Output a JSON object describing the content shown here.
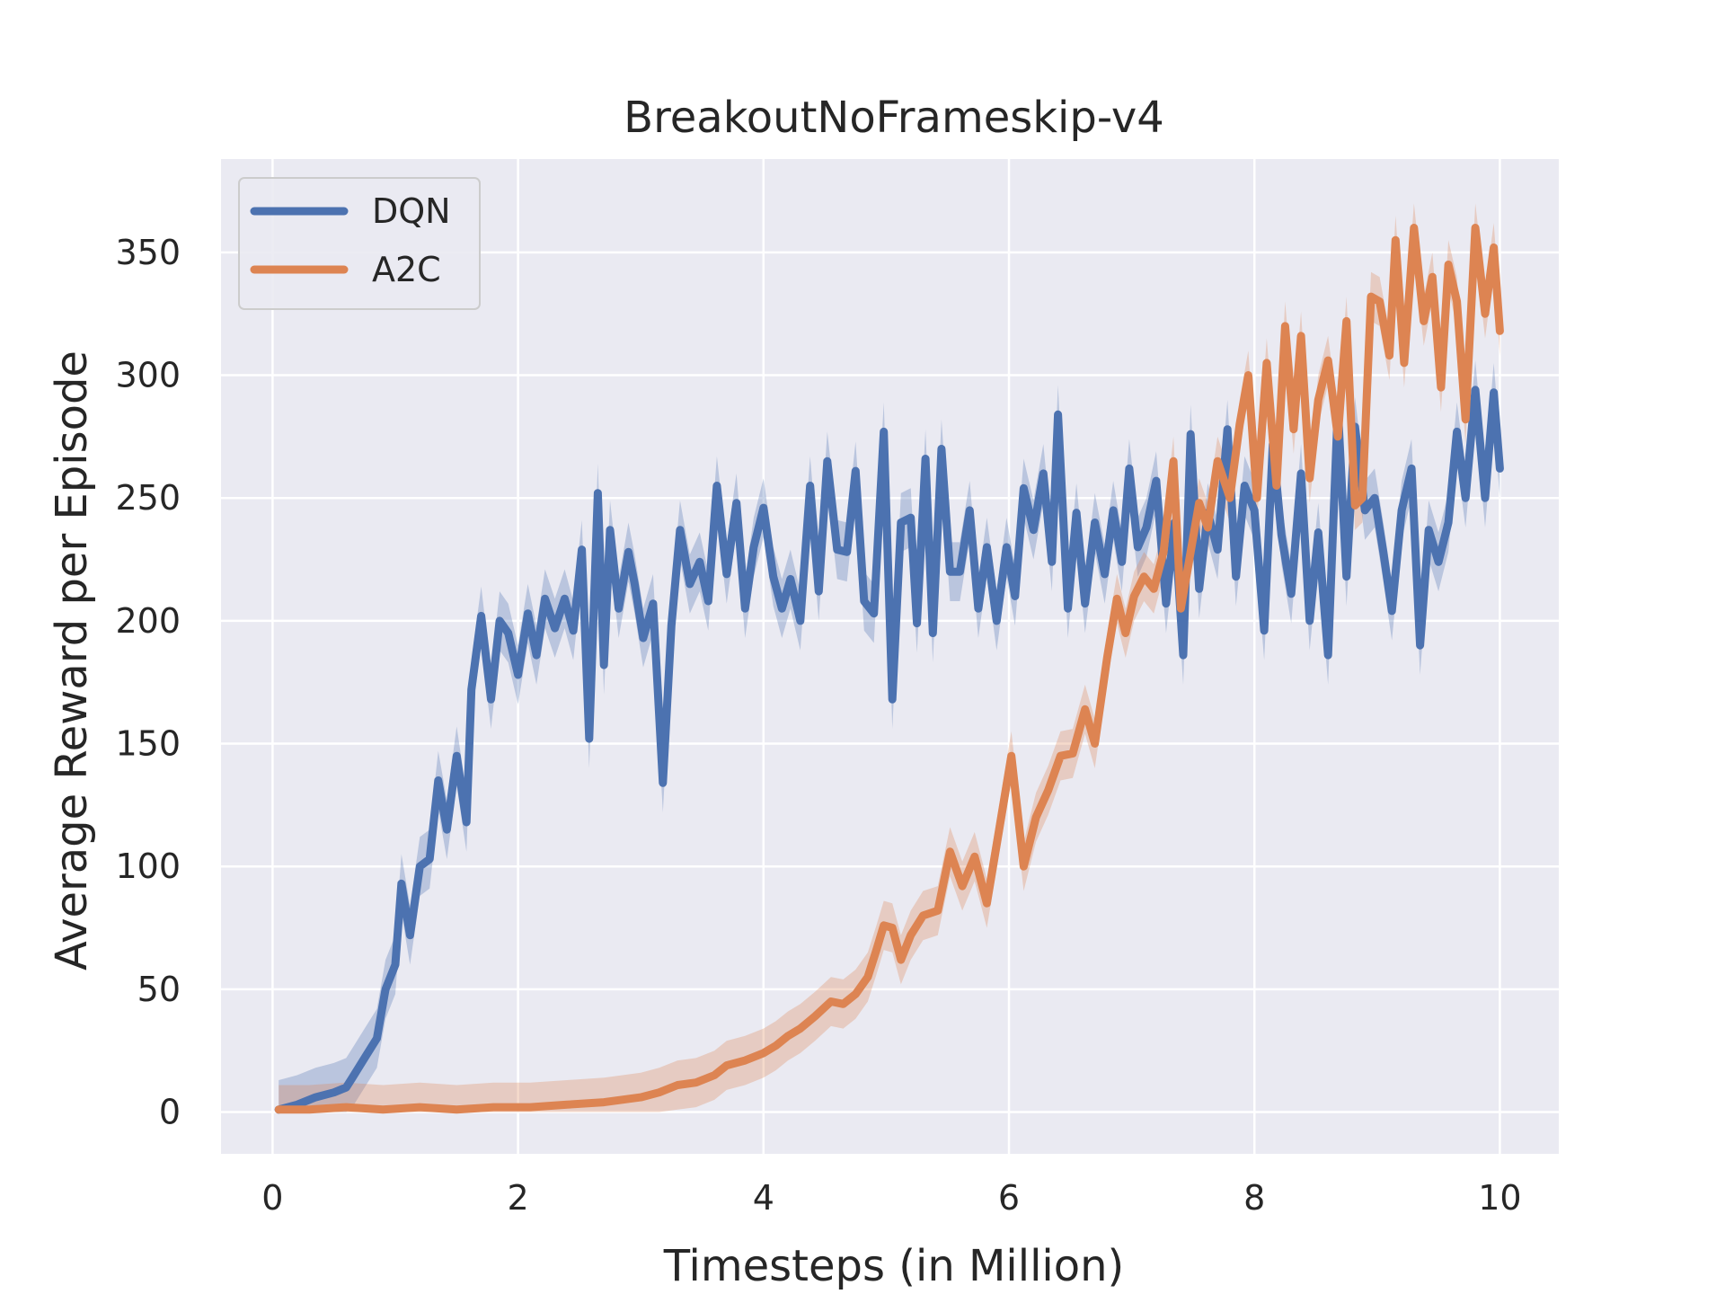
{
  "chart_data": {
    "type": "line",
    "title": "BreakoutNoFrameskip-v4",
    "xlabel": "Timesteps (in Million)",
    "ylabel": "Average Reward per Episode",
    "xlim": [
      -0.42,
      10.48
    ],
    "ylim": [
      -17,
      388
    ],
    "x_ticks": [
      0,
      2,
      4,
      6,
      8,
      10
    ],
    "y_ticks": [
      0,
      50,
      100,
      150,
      200,
      250,
      300,
      350
    ],
    "grid": true,
    "legend_position": "top-left",
    "background_color": "#eaeaf2",
    "series": [
      {
        "name": "DQN",
        "color": "#4c72b0",
        "points": [
          [
            0.05,
            1
          ],
          [
            0.2,
            3
          ],
          [
            0.35,
            6
          ],
          [
            0.5,
            8
          ],
          [
            0.6,
            10
          ],
          [
            0.65,
            14
          ],
          [
            0.75,
            22
          ],
          [
            0.85,
            30
          ],
          [
            0.92,
            50
          ],
          [
            1.0,
            60
          ],
          [
            1.05,
            93
          ],
          [
            1.12,
            72
          ],
          [
            1.2,
            100
          ],
          [
            1.28,
            103
          ],
          [
            1.35,
            135
          ],
          [
            1.42,
            115
          ],
          [
            1.5,
            145
          ],
          [
            1.58,
            118
          ],
          [
            1.62,
            172
          ],
          [
            1.7,
            202
          ],
          [
            1.78,
            168
          ],
          [
            1.85,
            200
          ],
          [
            1.92,
            195
          ],
          [
            2.0,
            178
          ],
          [
            2.08,
            203
          ],
          [
            2.15,
            186
          ],
          [
            2.22,
            209
          ],
          [
            2.3,
            197
          ],
          [
            2.38,
            209
          ],
          [
            2.45,
            196
          ],
          [
            2.52,
            229
          ],
          [
            2.58,
            152
          ],
          [
            2.65,
            252
          ],
          [
            2.7,
            182
          ],
          [
            2.75,
            237
          ],
          [
            2.82,
            205
          ],
          [
            2.9,
            228
          ],
          [
            2.95,
            215
          ],
          [
            3.02,
            193
          ],
          [
            3.1,
            207
          ],
          [
            3.18,
            134
          ],
          [
            3.25,
            198
          ],
          [
            3.32,
            237
          ],
          [
            3.4,
            215
          ],
          [
            3.48,
            224
          ],
          [
            3.55,
            208
          ],
          [
            3.62,
            255
          ],
          [
            3.7,
            219
          ],
          [
            3.78,
            248
          ],
          [
            3.85,
            205
          ],
          [
            3.92,
            230
          ],
          [
            4.0,
            246
          ],
          [
            4.08,
            218
          ],
          [
            4.15,
            205
          ],
          [
            4.22,
            217
          ],
          [
            4.3,
            200
          ],
          [
            4.38,
            255
          ],
          [
            4.45,
            212
          ],
          [
            4.52,
            265
          ],
          [
            4.6,
            229
          ],
          [
            4.68,
            228
          ],
          [
            4.75,
            261
          ],
          [
            4.82,
            208
          ],
          [
            4.9,
            203
          ],
          [
            4.98,
            277
          ],
          [
            5.05,
            168
          ],
          [
            5.12,
            240
          ],
          [
            5.2,
            242
          ],
          [
            5.25,
            199
          ],
          [
            5.32,
            266
          ],
          [
            5.38,
            195
          ],
          [
            5.45,
            270
          ],
          [
            5.52,
            220
          ],
          [
            5.6,
            220
          ],
          [
            5.68,
            245
          ],
          [
            5.75,
            205
          ],
          [
            5.82,
            230
          ],
          [
            5.9,
            200
          ],
          [
            5.98,
            230
          ],
          [
            6.05,
            210
          ],
          [
            6.12,
            254
          ],
          [
            6.2,
            237
          ],
          [
            6.28,
            260
          ],
          [
            6.35,
            224
          ],
          [
            6.4,
            284
          ],
          [
            6.48,
            205
          ],
          [
            6.55,
            244
          ],
          [
            6.62,
            207
          ],
          [
            6.7,
            240
          ],
          [
            6.78,
            219
          ],
          [
            6.85,
            245
          ],
          [
            6.92,
            224
          ],
          [
            6.98,
            262
          ],
          [
            7.05,
            230
          ],
          [
            7.12,
            238
          ],
          [
            7.2,
            257
          ],
          [
            7.28,
            207
          ],
          [
            7.35,
            240
          ],
          [
            7.42,
            186
          ],
          [
            7.48,
            276
          ],
          [
            7.55,
            213
          ],
          [
            7.62,
            244
          ],
          [
            7.7,
            229
          ],
          [
            7.78,
            278
          ],
          [
            7.85,
            218
          ],
          [
            7.92,
            255
          ],
          [
            8.0,
            245
          ],
          [
            8.08,
            196
          ],
          [
            8.15,
            272
          ],
          [
            8.22,
            235
          ],
          [
            8.3,
            211
          ],
          [
            8.38,
            260
          ],
          [
            8.45,
            200
          ],
          [
            8.52,
            236
          ],
          [
            8.6,
            186
          ],
          [
            8.68,
            287
          ],
          [
            8.75,
            218
          ],
          [
            8.82,
            279
          ],
          [
            8.9,
            245
          ],
          [
            8.98,
            250
          ],
          [
            9.05,
            228
          ],
          [
            9.12,
            204
          ],
          [
            9.2,
            245
          ],
          [
            9.28,
            262
          ],
          [
            9.35,
            190
          ],
          [
            9.42,
            237
          ],
          [
            9.5,
            224
          ],
          [
            9.58,
            240
          ],
          [
            9.65,
            277
          ],
          [
            9.72,
            250
          ],
          [
            9.8,
            294
          ],
          [
            9.88,
            250
          ],
          [
            9.95,
            293
          ],
          [
            10.0,
            262
          ]
        ],
        "band": 12
      },
      {
        "name": "A2C",
        "color": "#dd8452",
        "points": [
          [
            0.05,
            1
          ],
          [
            0.3,
            1
          ],
          [
            0.6,
            2
          ],
          [
            0.9,
            1
          ],
          [
            1.2,
            2
          ],
          [
            1.5,
            1
          ],
          [
            1.8,
            2
          ],
          [
            2.1,
            2
          ],
          [
            2.4,
            3
          ],
          [
            2.7,
            4
          ],
          [
            3.0,
            6
          ],
          [
            3.15,
            8
          ],
          [
            3.3,
            11
          ],
          [
            3.45,
            12
          ],
          [
            3.6,
            15
          ],
          [
            3.7,
            19
          ],
          [
            3.85,
            21
          ],
          [
            4.0,
            24
          ],
          [
            4.1,
            27
          ],
          [
            4.2,
            31
          ],
          [
            4.3,
            34
          ],
          [
            4.42,
            39
          ],
          [
            4.55,
            45
          ],
          [
            4.65,
            44
          ],
          [
            4.75,
            48
          ],
          [
            4.85,
            55
          ],
          [
            4.92,
            66
          ],
          [
            4.98,
            76
          ],
          [
            5.05,
            75
          ],
          [
            5.12,
            62
          ],
          [
            5.2,
            72
          ],
          [
            5.3,
            80
          ],
          [
            5.42,
            82
          ],
          [
            5.52,
            106
          ],
          [
            5.62,
            92
          ],
          [
            5.72,
            104
          ],
          [
            5.82,
            85
          ],
          [
            5.92,
            115
          ],
          [
            6.02,
            145
          ],
          [
            6.12,
            100
          ],
          [
            6.22,
            120
          ],
          [
            6.32,
            131
          ],
          [
            6.42,
            145
          ],
          [
            6.52,
            146
          ],
          [
            6.62,
            164
          ],
          [
            6.7,
            150
          ],
          [
            6.8,
            185
          ],
          [
            6.88,
            209
          ],
          [
            6.95,
            195
          ],
          [
            7.02,
            210
          ],
          [
            7.1,
            218
          ],
          [
            7.18,
            213
          ],
          [
            7.26,
            228
          ],
          [
            7.34,
            265
          ],
          [
            7.4,
            205
          ],
          [
            7.48,
            228
          ],
          [
            7.55,
            248
          ],
          [
            7.62,
            238
          ],
          [
            7.7,
            265
          ],
          [
            7.8,
            250
          ],
          [
            7.88,
            280
          ],
          [
            7.95,
            300
          ],
          [
            8.02,
            250
          ],
          [
            8.1,
            305
          ],
          [
            8.18,
            255
          ],
          [
            8.25,
            320
          ],
          [
            8.32,
            278
          ],
          [
            8.38,
            316
          ],
          [
            8.45,
            258
          ],
          [
            8.52,
            290
          ],
          [
            8.6,
            306
          ],
          [
            8.68,
            275
          ],
          [
            8.75,
            322
          ],
          [
            8.82,
            247
          ],
          [
            8.88,
            250
          ],
          [
            8.95,
            332
          ],
          [
            9.02,
            330
          ],
          [
            9.1,
            308
          ],
          [
            9.15,
            355
          ],
          [
            9.22,
            305
          ],
          [
            9.3,
            360
          ],
          [
            9.38,
            322
          ],
          [
            9.45,
            340
          ],
          [
            9.52,
            295
          ],
          [
            9.58,
            345
          ],
          [
            9.65,
            330
          ],
          [
            9.72,
            282
          ],
          [
            9.8,
            360
          ],
          [
            9.88,
            325
          ],
          [
            9.95,
            352
          ],
          [
            10.0,
            318
          ]
        ],
        "band": 10
      }
    ]
  }
}
